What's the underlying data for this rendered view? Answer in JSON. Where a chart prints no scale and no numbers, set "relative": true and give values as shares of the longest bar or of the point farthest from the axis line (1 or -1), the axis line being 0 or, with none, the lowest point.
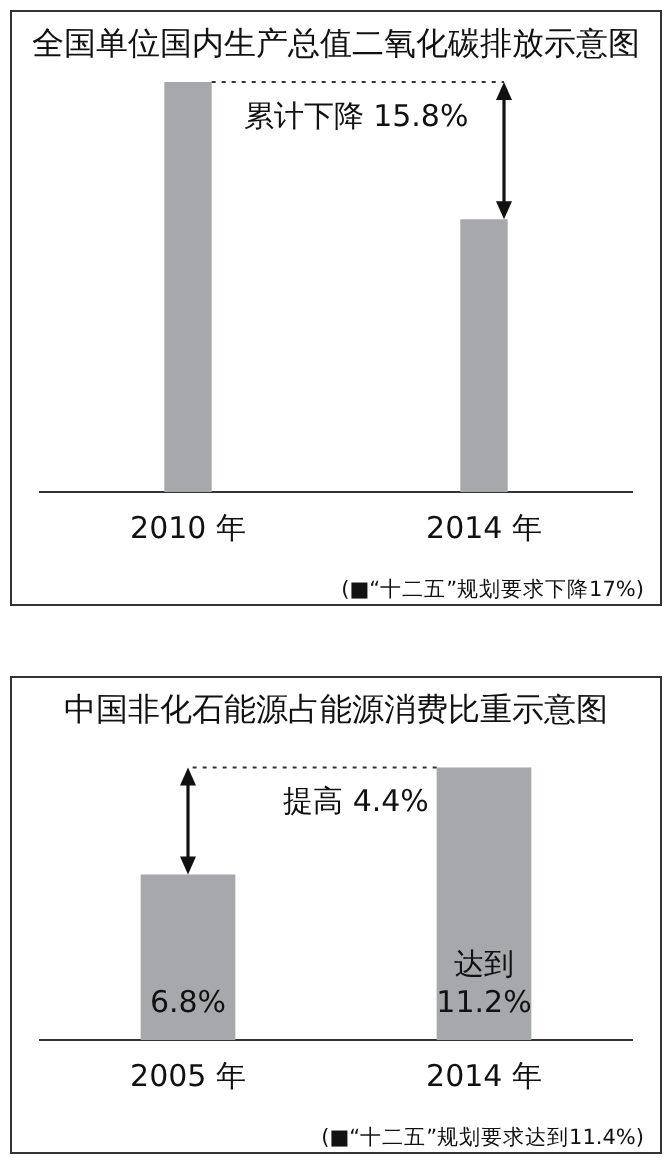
{
  "chart_data": [
    {
      "type": "bar",
      "title": "全国单位国内生产总值二氧化碳排放示意图",
      "categories": [
        "2010 年",
        "2014 年"
      ],
      "values": [
        1,
        0.665
      ],
      "color": "#a7a8ab",
      "relative": true,
      "grid": false,
      "legend": false,
      "annotations": [
        "累计下降 15.8%",
        "(■“十二五”规划要求下降17%)"
      ]
    },
    {
      "type": "bar",
      "title": "中国非化石能源占能源消费比重示意图",
      "categories": [
        "2005 年",
        "2014 年"
      ],
      "values": [
        6.8,
        11.2
      ],
      "color": "#a7a8ab",
      "value_labels": [
        "6.8%",
        "达到\n11.2%"
      ],
      "grid": false,
      "legend": false,
      "annotations": [
        "提高 4.4%",
        "(■“十二五”规划要求达到11.4%)"
      ]
    }
  ]
}
